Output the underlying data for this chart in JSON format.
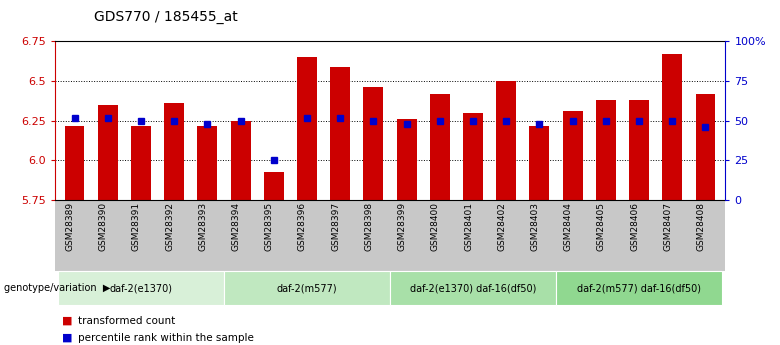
{
  "title": "GDS770 / 185455_at",
  "samples": [
    "GSM28389",
    "GSM28390",
    "GSM28391",
    "GSM28392",
    "GSM28393",
    "GSM28394",
    "GSM28395",
    "GSM28396",
    "GSM28397",
    "GSM28398",
    "GSM28399",
    "GSM28400",
    "GSM28401",
    "GSM28402",
    "GSM28403",
    "GSM28404",
    "GSM28405",
    "GSM28406",
    "GSM28407",
    "GSM28408"
  ],
  "transformed_count": [
    6.22,
    6.35,
    6.22,
    6.36,
    6.22,
    6.25,
    5.93,
    6.65,
    6.59,
    6.46,
    6.26,
    6.42,
    6.3,
    6.5,
    6.22,
    6.31,
    6.38,
    6.38,
    6.67,
    6.42
  ],
  "percentile_rank": [
    52,
    52,
    50,
    50,
    48,
    50,
    25,
    52,
    52,
    50,
    48,
    50,
    50,
    50,
    48,
    50,
    50,
    50,
    50,
    46
  ],
  "groups": [
    {
      "label": "daf-2(e1370)",
      "start": 0,
      "end": 5,
      "color": "#d8f0d8"
    },
    {
      "label": "daf-2(m577)",
      "start": 5,
      "end": 10,
      "color": "#c0e8c0"
    },
    {
      "label": "daf-2(e1370) daf-16(df50)",
      "start": 10,
      "end": 15,
      "color": "#a8e0a8"
    },
    {
      "label": "daf-2(m577) daf-16(df50)",
      "start": 15,
      "end": 20,
      "color": "#90d890"
    }
  ],
  "ymin": 5.75,
  "ymax": 6.75,
  "yticks_left": [
    5.75,
    6.0,
    6.25,
    6.5,
    6.75
  ],
  "yticks_right": [
    0,
    25,
    50,
    75,
    100
  ],
  "bar_color": "#cc0000",
  "dot_color": "#0000cc",
  "background_color": "#ffffff",
  "title_fontsize": 10,
  "axis_color_left": "#cc0000",
  "axis_color_right": "#0000cc",
  "gray_bg": "#c8c8c8"
}
